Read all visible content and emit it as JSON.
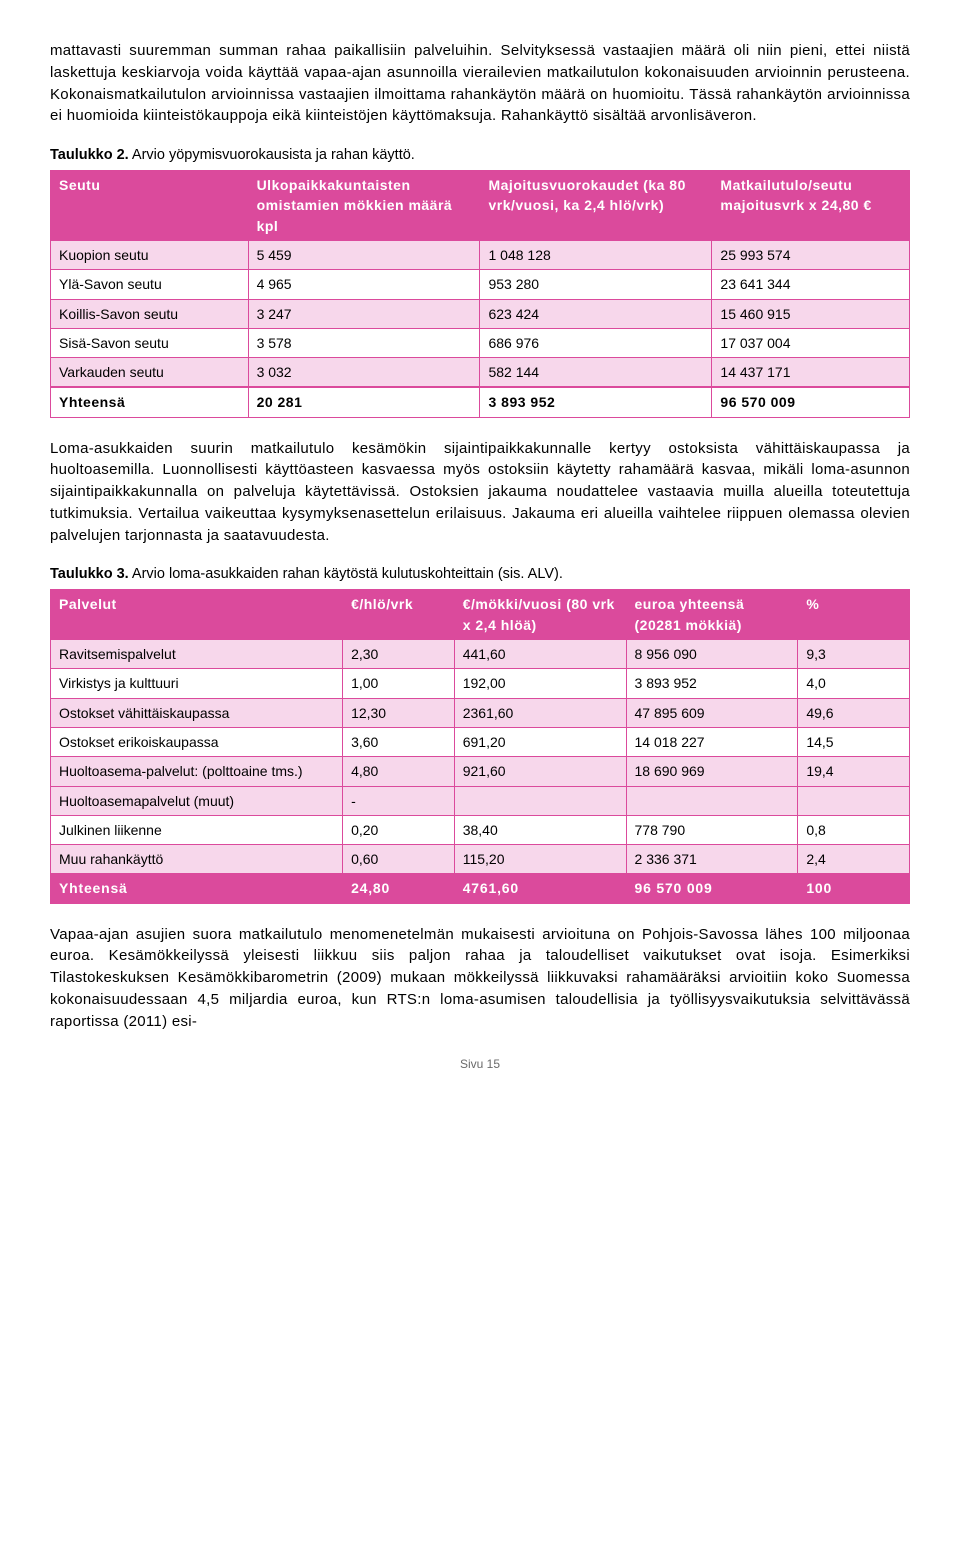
{
  "paragraphs": {
    "p1": "mattavasti suuremman summan rahaa paikallisiin palveluihin. Selvityksessä vastaajien määrä oli niin pieni, ettei niistä laskettuja keskiarvoja voida käyttää vapaa-ajan asunnoilla vierailevien matkailutulon kokonaisuuden arvioinnin perusteena. Kokonaismatkailutulon arvioinnissa vastaajien ilmoittama rahankäytön määrä on huomioitu. Tässä rahankäytön arvioinnissa ei huomioida kiinteistökauppoja eikä kiinteistöjen käyttömaksuja. Rahankäyttö sisältää arvonlisäveron.",
    "p2": "Loma-asukkaiden suurin matkailutulo kesämökin sijaintipaikkakunnalle kertyy ostoksista vähittäiskaupassa ja huoltoasemilla. Luonnollisesti käyttöasteen kasvaessa myös ostoksiin käytetty rahamäärä kasvaa, mikäli loma-asunnon sijaintipaikkakunnalla on palveluja käytettävissä. Ostoksien jakauma noudattelee vastaavia muilla alueilla toteutettuja tutkimuksia. Vertailua vaikeuttaa kysymyksenasettelun erilaisuus. Jakauma eri alueilla vaihtelee riippuen olemassa olevien palvelujen tarjonnasta ja saatavuudesta.",
    "p3": "Vapaa-ajan asujien suora matkailutulo menomenetelmän mukaisesti arvioituna on Pohjois-Savossa lähes 100 miljoonaa euroa. Kesämökkeilyssä yleisesti liikkuu siis paljon rahaa ja taloudelliset vaikutukset ovat isoja. Esimerkiksi Tilastokeskuksen Kesämökkibarometrin (2009) mukaan mökkeilyssä liikkuvaksi rahamääräksi arvioitiin koko Suomessa kokonaisuudessaan 4,5 miljardia euroa, kun RTS:n loma-asumisen taloudellisia ja työllisyysvaikutuksia selvittävässä raportissa (2011) esi-"
  },
  "table2": {
    "caption_label": "Taulukko 2.",
    "caption_desc": " Arvio yöpymisvuorokausista ja rahan käyttö.",
    "headers": [
      "Seutu",
      "Ulkopaikkakuntaisten omistamien mökkien määrä kpl",
      "Majoitusvuorokaudet (ka 80 vrk/vuosi, ka 2,4 hlö/vrk)",
      "Matkailutulo/seutu majoitusvrk x 24,80 €"
    ],
    "rows": [
      [
        "Kuopion seutu",
        "5 459",
        "1 048 128",
        "25 993 574"
      ],
      [
        "Ylä-Savon seutu",
        "4 965",
        "953 280",
        "23 641 344"
      ],
      [
        "Koillis-Savon seutu",
        "3 247",
        "623 424",
        "15 460 915"
      ],
      [
        "Sisä-Savon seutu",
        "3 578",
        "686 976",
        "17 037 004"
      ],
      [
        "Varkauden seutu",
        "3 032",
        "582 144",
        "14 437 171"
      ]
    ],
    "total": [
      "Yhteensä",
      "20 281",
      "3 893 952",
      "96 570 009"
    ],
    "styling": {
      "header_bg": "#db4a9c",
      "header_fg": "#ffffff",
      "row_even_bg": "#f7d7eb",
      "row_odd_bg": "#ffffff",
      "border_color": "#db4a9c"
    }
  },
  "table3": {
    "caption_label": "Taulukko 3.",
    "caption_desc": " Arvio loma-asukkaiden rahan käytöstä kulutuskohteittain (sis. ALV).",
    "headers": [
      "Palvelut",
      "€/hlö/vrk",
      "€/mökki/vuosi (80 vrk x 2,4 hlöä)",
      "euroa yhteensä (20281 mökkiä)",
      "%"
    ],
    "rows": [
      [
        "Ravitsemispalvelut",
        "2,30",
        "441,60",
        "8 956 090",
        "9,3"
      ],
      [
        "Virkistys ja kulttuuri",
        "1,00",
        "192,00",
        "3 893 952",
        "4,0"
      ],
      [
        "Ostokset vähittäiskaupassa",
        "12,30",
        "2361,60",
        "47 895 609",
        "49,6"
      ],
      [
        "Ostokset erikoiskaupassa",
        "3,60",
        "691,20",
        "14 018 227",
        "14,5"
      ],
      [
        "Huoltoasema-palvelut: (polttoaine tms.)",
        "4,80",
        "921,60",
        "18 690 969",
        "19,4"
      ],
      [
        "Huoltoasemapalvelut (muut)",
        "-",
        "",
        "",
        ""
      ],
      [
        "Julkinen liikenne",
        "0,20",
        "38,40",
        "778 790",
        "0,8"
      ],
      [
        "Muu rahankäyttö",
        "0,60",
        "115,20",
        "2 336 371",
        "2,4"
      ]
    ],
    "total": [
      "Yhteensä",
      "24,80",
      "4761,60",
      "96 570 009",
      "100"
    ],
    "styling": {
      "header_bg": "#db4a9c",
      "header_fg": "#ffffff",
      "row_even_bg": "#f7d7eb",
      "row_odd_bg": "#ffffff",
      "total_bg": "#db4a9c",
      "total_fg": "#ffffff",
      "border_color": "#db4a9c"
    }
  },
  "footer": "Sivu 15"
}
